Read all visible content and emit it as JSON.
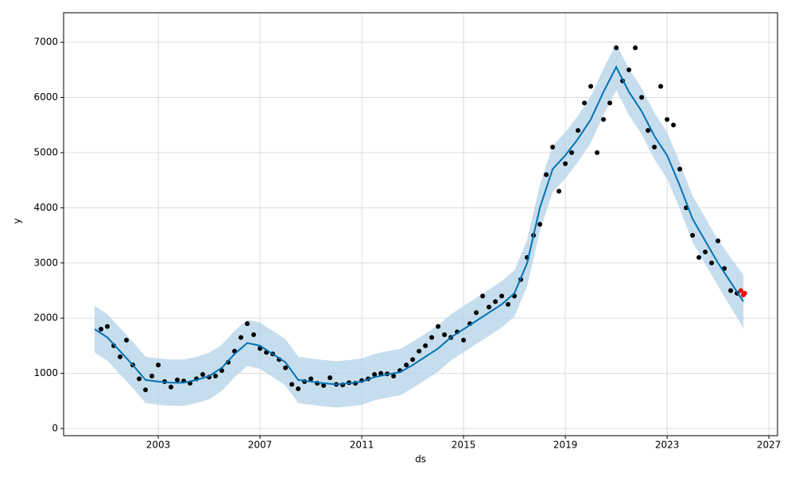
{
  "chart_data": {
    "type": "line",
    "xlabel": "ds",
    "ylabel": "y",
    "xlim": [
      1999.28,
      2027.34
    ],
    "ylim": [
      -130,
      7535
    ],
    "xticks": [
      2003,
      2007,
      2011,
      2015,
      2019,
      2023,
      2027
    ],
    "yticks": [
      0,
      1000,
      2000,
      3000,
      4000,
      5000,
      6000,
      7000
    ],
    "grid": true,
    "series": [
      {
        "style": "band",
        "color": "#b3d1e7",
        "x": [
          2000.5,
          2001,
          2001.5,
          2002,
          2002.5,
          2003,
          2003.5,
          2004,
          2004.5,
          2005,
          2005.5,
          2006,
          2006.5,
          2007,
          2007.5,
          2008,
          2008.5,
          2009,
          2009.5,
          2010,
          2010.5,
          2011,
          2011.5,
          2012,
          2012.5,
          2013,
          2013.5,
          2014,
          2014.5,
          2015,
          2015.5,
          2016,
          2016.5,
          2017,
          2017.5,
          2018,
          2018.5,
          2019,
          2019.5,
          2020,
          2020.5,
          2021,
          2021.5,
          2022,
          2022.5,
          2023,
          2023.5,
          2024,
          2024.5,
          2025,
          2025.5,
          2026
        ],
        "lower": [
          1380,
          1230,
          980,
          730,
          460,
          430,
          410,
          410,
          460,
          530,
          680,
          930,
          1130,
          1080,
          930,
          780,
          460,
          430,
          400,
          380,
          400,
          430,
          510,
          560,
          600,
          730,
          880,
          1030,
          1230,
          1380,
          1530,
          1680,
          1830,
          2030,
          2580,
          3580,
          4280,
          4530,
          4830,
          5180,
          5680,
          6130,
          5680,
          5330,
          4880,
          4530,
          3980,
          3380,
          2980,
          2580,
          2200,
          1820
        ],
        "upper": [
          2220,
          2070,
          1820,
          1570,
          1300,
          1270,
          1250,
          1250,
          1300,
          1370,
          1520,
          1770,
          1970,
          1920,
          1770,
          1620,
          1300,
          1270,
          1240,
          1220,
          1240,
          1270,
          1350,
          1400,
          1440,
          1570,
          1720,
          1870,
          2070,
          2220,
          2370,
          2520,
          2670,
          2870,
          3420,
          4420,
          5120,
          5370,
          5670,
          6020,
          6520,
          6970,
          6520,
          6170,
          5720,
          5370,
          4820,
          4220,
          3820,
          3420,
          3100,
          2780
        ]
      },
      {
        "style": "points",
        "color": "#000000",
        "x": [
          2000.75,
          2001,
          2001.25,
          2001.5,
          2001.75,
          2002,
          2002.25,
          2002.5,
          2002.75,
          2003,
          2003.25,
          2003.5,
          2003.75,
          2004,
          2004.25,
          2004.5,
          2004.75,
          2005,
          2005.25,
          2005.5,
          2005.75,
          2006,
          2006.25,
          2006.5,
          2006.75,
          2007,
          2007.25,
          2007.5,
          2007.75,
          2008,
          2008.25,
          2008.5,
          2008.75,
          2009,
          2009.25,
          2009.5,
          2009.75,
          2010,
          2010.25,
          2010.5,
          2010.75,
          2011,
          2011.25,
          2011.5,
          2011.75,
          2012,
          2012.25,
          2012.5,
          2012.75,
          2013,
          2013.25,
          2013.5,
          2013.75,
          2014,
          2014.25,
          2014.5,
          2014.75,
          2015,
          2015.25,
          2015.5,
          2015.75,
          2016,
          2016.25,
          2016.5,
          2016.75,
          2017,
          2017.25,
          2017.5,
          2017.75,
          2018,
          2018.25,
          2018.5,
          2018.75,
          2019,
          2019.25,
          2019.5,
          2019.75,
          2020,
          2020.25,
          2020.5,
          2020.75,
          2021,
          2021.25,
          2021.5,
          2021.75,
          2022,
          2022.25,
          2022.5,
          2022.75,
          2023,
          2023.25,
          2023.5,
          2023.75,
          2024,
          2024.25,
          2024.5,
          2024.75,
          2025,
          2025.25,
          2025.5,
          2025.75
        ],
        "values": [
          1800,
          1850,
          1500,
          1300,
          1600,
          1150,
          900,
          700,
          950,
          1150,
          850,
          750,
          880,
          860,
          820,
          900,
          980,
          930,
          950,
          1050,
          1200,
          1400,
          1650,
          1900,
          1700,
          1450,
          1380,
          1350,
          1250,
          1100,
          800,
          720,
          850,
          900,
          820,
          780,
          920,
          800,
          790,
          830,
          820,
          870,
          900,
          980,
          1000,
          990,
          950,
          1050,
          1150,
          1250,
          1400,
          1500,
          1650,
          1850,
          1700,
          1650,
          1750,
          1600,
          1900,
          2100,
          2400,
          2200,
          2300,
          2400,
          2250,
          2400,
          2700,
          3100,
          3500,
          3700,
          4600,
          5100,
          4300,
          4800,
          5000,
          5400,
          5900,
          6200,
          5000,
          5600,
          5900,
          6900,
          6300,
          6500,
          6900,
          6000,
          5400,
          5100,
          6200,
          5600,
          5500,
          4700,
          4000,
          3500,
          3100,
          3200,
          3000,
          3400,
          2900,
          2500,
          2450
        ]
      },
      {
        "style": "line",
        "color": "#0072b2",
        "x": [
          2000.5,
          2001,
          2001.5,
          2002,
          2002.5,
          2003,
          2003.5,
          2004,
          2004.5,
          2005,
          2005.5,
          2006,
          2006.5,
          2007,
          2007.5,
          2008,
          2008.5,
          2009,
          2009.5,
          2010,
          2010.5,
          2011,
          2011.5,
          2012,
          2012.5,
          2013,
          2013.5,
          2014,
          2014.5,
          2015,
          2015.5,
          2016,
          2016.5,
          2017,
          2017.5,
          2018,
          2018.5,
          2019,
          2019.5,
          2020,
          2020.5,
          2021,
          2021.5,
          2022,
          2022.5,
          2023,
          2023.5,
          2024,
          2024.5,
          2025,
          2025.5,
          2026
        ],
        "values": [
          1800,
          1650,
          1400,
          1150,
          880,
          850,
          830,
          830,
          880,
          950,
          1100,
          1350,
          1550,
          1500,
          1350,
          1200,
          880,
          850,
          820,
          800,
          820,
          850,
          930,
          980,
          1020,
          1150,
          1300,
          1450,
          1650,
          1800,
          1950,
          2100,
          2250,
          2450,
          3000,
          4000,
          4700,
          4950,
          5250,
          5600,
          6100,
          6550,
          6100,
          5750,
          5300,
          4950,
          4400,
          3800,
          3400,
          3000,
          2650,
          2300
        ]
      },
      {
        "style": "points",
        "color": "#ff0000",
        "x": [
          2025.9,
          2026.0,
          2026.05
        ],
        "values": [
          2500,
          2420,
          2450
        ]
      }
    ]
  }
}
